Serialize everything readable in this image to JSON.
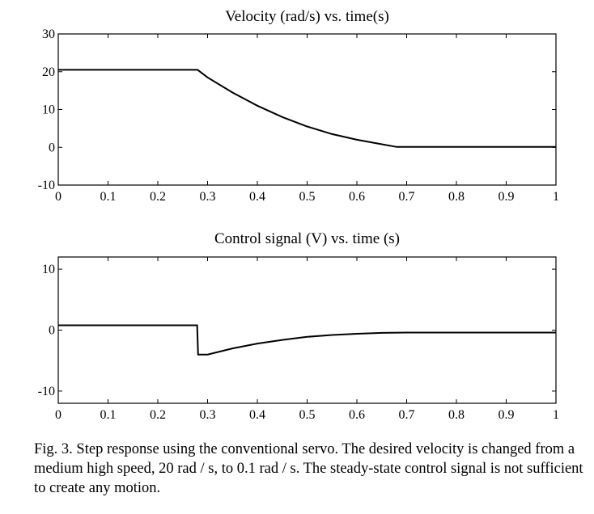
{
  "chart_data": [
    {
      "type": "line",
      "title": "Velocity (rad/s) vs. time(s)",
      "xlabel": "",
      "ylabel": "",
      "xlim": [
        0,
        1
      ],
      "ylim": [
        -10,
        30
      ],
      "xticks": [
        "0",
        "0.1",
        "0.2",
        "0.3",
        "0.4",
        "0.5",
        "0.6",
        "0.7",
        "0.8",
        "0.9",
        "1"
      ],
      "yticks": [
        "-10",
        "0",
        "10",
        "20",
        "30"
      ],
      "grid": false,
      "series": [
        {
          "x": [
            0,
            0.05,
            0.1,
            0.15,
            0.2,
            0.25,
            0.28,
            0.3,
            0.35,
            0.4,
            0.45,
            0.5,
            0.55,
            0.6,
            0.65,
            0.68,
            0.7,
            0.75,
            0.8,
            0.85,
            0.9,
            0.95,
            1.0
          ],
          "y": [
            20.5,
            20.5,
            20.5,
            20.5,
            20.5,
            20.5,
            20.5,
            18.5,
            14.5,
            11,
            8,
            5.5,
            3.5,
            2,
            0.8,
            0.1,
            0.1,
            0.1,
            0.1,
            0.1,
            0.1,
            0.1,
            0.1
          ]
        }
      ]
    },
    {
      "type": "line",
      "title": "Control signal (V) vs. time (s)",
      "xlabel": "",
      "ylabel": "",
      "xlim": [
        0,
        1
      ],
      "ylim": [
        -12,
        12
      ],
      "xticks": [
        "0",
        "0.1",
        "0.2",
        "0.3",
        "0.4",
        "0.5",
        "0.6",
        "0.7",
        "0.8",
        "0.9",
        "1"
      ],
      "yticks": [
        "10",
        "0",
        "-10"
      ],
      "grid": false,
      "series": [
        {
          "x": [
            0,
            0.1,
            0.2,
            0.279,
            0.281,
            0.3,
            0.35,
            0.4,
            0.45,
            0.5,
            0.55,
            0.6,
            0.65,
            0.7,
            0.75,
            0.8,
            0.9,
            1.0
          ],
          "y": [
            0.8,
            0.8,
            0.8,
            0.8,
            -4,
            -4,
            -3.0,
            -2.2,
            -1.6,
            -1.1,
            -0.8,
            -0.6,
            -0.45,
            -0.4,
            -0.4,
            -0.4,
            -0.4,
            -0.4
          ]
        }
      ]
    }
  ],
  "caption": "Fig. 3. Step response using the conventional servo. The desired velocity is changed from a medium high speed, 20 rad / s, to 0.1 rad / s. The steady-state control signal is not sufficient to create any motion."
}
